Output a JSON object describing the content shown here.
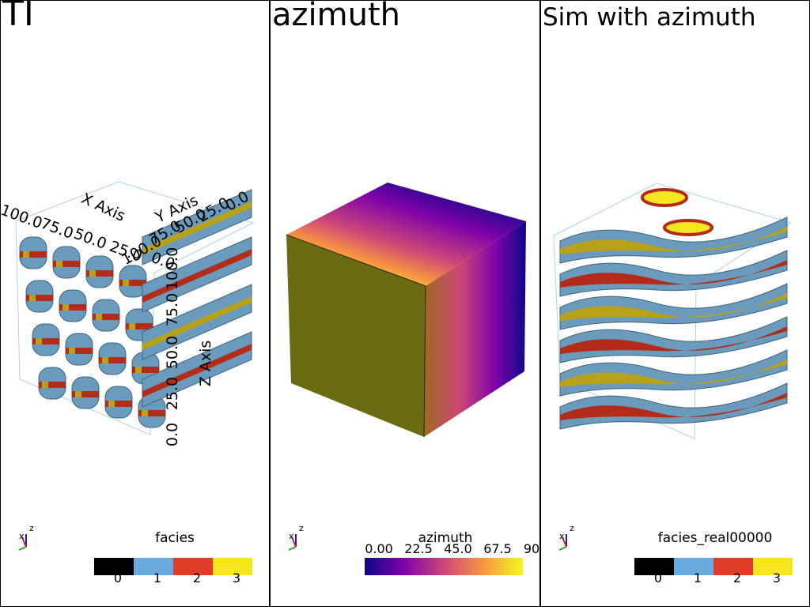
{
  "panels": [
    {
      "title": "TI",
      "colorbar": {
        "title": "facies",
        "ticks": [
          "0",
          "1",
          "2",
          "3"
        ],
        "colors": [
          "#000000",
          "#6aa9dd",
          "#e03c28",
          "#f5e620"
        ]
      },
      "axes": {
        "x_label": "X Axis",
        "x_ticks": [
          "100.0",
          "75.0",
          "50.0",
          "25.0",
          "0.0"
        ],
        "y_label": "Y Axis",
        "y_ticks": [
          "0.0",
          "25.0",
          "50.0",
          "75.0",
          "100.0"
        ],
        "z_label": "Z Axis",
        "z_ticks": [
          "0.0",
          "25.0",
          "50.0",
          "75.0",
          "100.0"
        ]
      },
      "orientation_labels": [
        "x",
        "z"
      ]
    },
    {
      "title": "azimuth",
      "colorbar": {
        "title": "azimuth",
        "ticks": [
          "0.00",
          "22.5",
          "45.0",
          "67.5",
          "90"
        ]
      },
      "orientation_labels": [
        "x",
        "z"
      ]
    },
    {
      "title": "Sim with azimuth",
      "colorbar": {
        "title": "facies_real00000",
        "ticks": [
          "0",
          "1",
          "2",
          "3"
        ],
        "colors": [
          "#000000",
          "#6aa9dd",
          "#e03c28",
          "#f5e620"
        ]
      },
      "orientation_labels": [
        "x",
        "z"
      ]
    }
  ]
}
